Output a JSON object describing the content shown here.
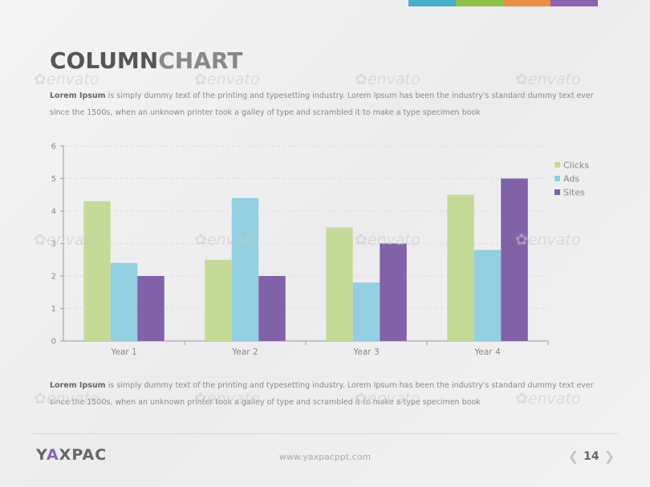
{
  "title": {
    "part1": "COLUMN",
    "part2": "CHART"
  },
  "paragraph_top": {
    "lead": "Lorem Ipsum",
    "rest": " is simply dummy text of the printing and typesetting industry. Lorem Ipsum has been the industry's standard dummy text ever since the 1500s, when an unknown printer took a galley of type and scrambled it to make a type specimen book"
  },
  "paragraph_bottom": {
    "lead": "Lorem Ipsum",
    "rest": " is simply dummy text of the printing and typesetting industry. Lorem Ipsum has been the industry's standard dummy text ever since the 1500s, when an unknown printer took a galley of type and scrambled it to make a type specimen book"
  },
  "watermark": {
    "text": "envato"
  },
  "accent_colors": [
    "#48aecb",
    "#8cc04d",
    "#e98f44",
    "#8a65ae"
  ],
  "chart_data": {
    "type": "bar",
    "title": "",
    "xlabel": "",
    "ylabel": "",
    "categories": [
      "Year 1",
      "Year 2",
      "Year 3",
      "Year 4"
    ],
    "series": [
      {
        "name": "Clicks",
        "color": "#c4db98",
        "values": [
          4.3,
          2.5,
          3.5,
          4.5
        ]
      },
      {
        "name": "Ads",
        "color": "#93cfe0",
        "values": [
          2.4,
          4.4,
          1.8,
          2.8
        ]
      },
      {
        "name": "Sites",
        "color": "#8161a7",
        "values": [
          2.0,
          2.0,
          3.0,
          5.0
        ]
      }
    ],
    "ylim": [
      0,
      6
    ],
    "yticks": [
      0,
      1,
      2,
      3,
      4,
      5,
      6
    ],
    "grid": true,
    "legend": "right"
  },
  "footer": {
    "logo_part1": "Y",
    "logo_accent": "A",
    "logo_part2": "XPAC",
    "url": "www.yaxpacppt.com",
    "page_number": "14"
  }
}
